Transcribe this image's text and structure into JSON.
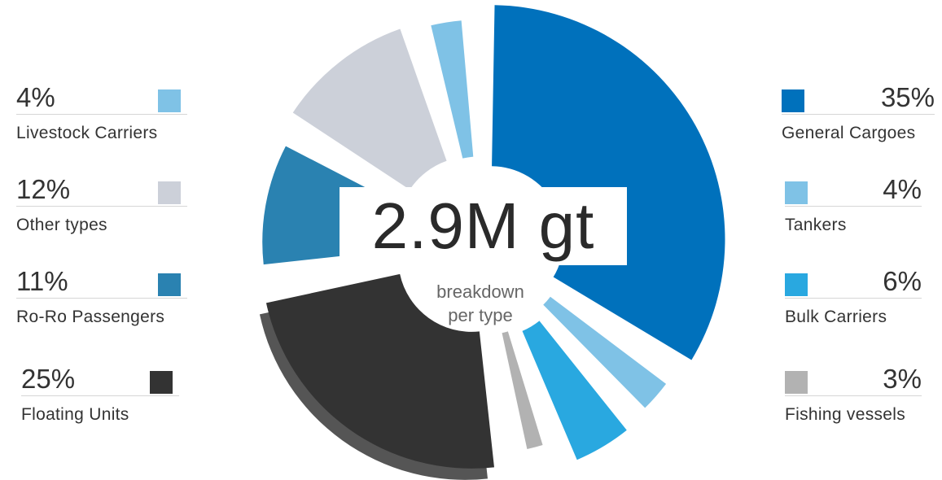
{
  "chart_data": {
    "type": "pie",
    "center_value": "2.9M gt",
    "center_label_line1": "breakdown",
    "center_label_line2": "per type",
    "slices": [
      {
        "label": "General Cargoes",
        "percent": "35%",
        "value": 35,
        "color": "#0071bc"
      },
      {
        "label": "Tankers",
        "percent": "4%",
        "value": 4,
        "color": "#7fc2e6"
      },
      {
        "label": "Bulk Carriers",
        "percent": "6%",
        "value": 6,
        "color": "#29a8e0"
      },
      {
        "label": "Fishing vessels",
        "percent": "3%",
        "value": 3,
        "color": "#b2b2b2"
      },
      {
        "label": "Floating Units",
        "percent": "25%",
        "value": 25,
        "color": "#333333"
      },
      {
        "label": "Ro-Ro Passengers",
        "percent": "11%",
        "value": 11,
        "color": "#2a82b1"
      },
      {
        "label": "Other types",
        "percent": "12%",
        "value": 12,
        "color": "#ccd0d9"
      },
      {
        "label": "Livestock Carriers",
        "percent": "4%",
        "value": 4,
        "color": "#7fc2e6"
      }
    ]
  }
}
